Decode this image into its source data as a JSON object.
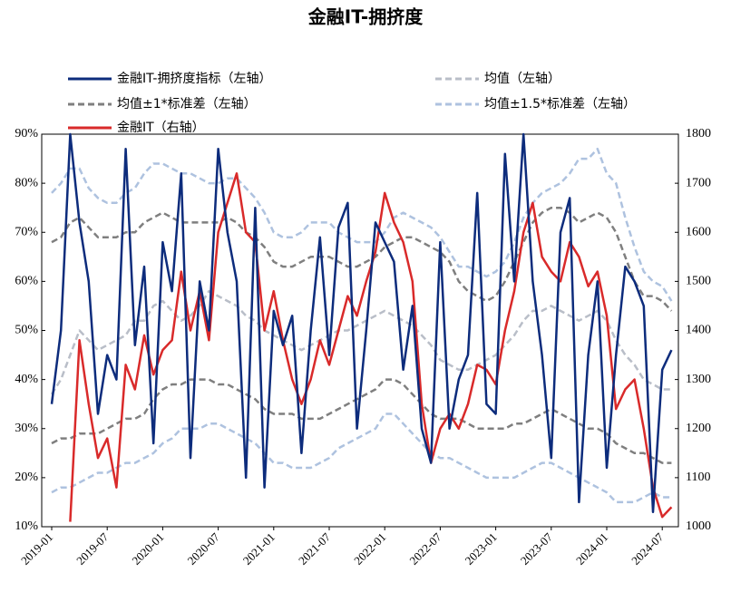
{
  "chart_data": {
    "type": "line",
    "title": "金融IT-拥挤度",
    "categories": [
      "2019-01",
      null,
      null,
      null,
      null,
      null,
      "2019-07",
      null,
      null,
      null,
      null,
      null,
      "2020-01",
      null,
      null,
      null,
      null,
      null,
      "2020-07",
      null,
      null,
      null,
      null,
      null,
      "2021-01",
      null,
      null,
      null,
      null,
      null,
      "2021-07",
      null,
      null,
      null,
      null,
      null,
      "2022-01",
      null,
      null,
      null,
      null,
      null,
      "2022-07",
      null,
      null,
      null,
      null,
      null,
      "2023-01",
      null,
      null,
      null,
      null,
      null,
      "2023-07",
      null,
      null,
      null,
      null,
      null,
      "2024-01",
      null,
      null,
      null,
      null,
      null,
      "2024-07",
      null
    ],
    "ylim": [
      10,
      90
    ],
    "yticks": [
      {
        "value": 10,
        "label": "10%"
      },
      {
        "value": 20,
        "label": "20%"
      },
      {
        "value": 30,
        "label": "30%"
      },
      {
        "value": 40,
        "label": "40%"
      },
      {
        "value": 50,
        "label": "50%"
      },
      {
        "value": 60,
        "label": "60%"
      },
      {
        "value": 70,
        "label": "70%"
      },
      {
        "value": 80,
        "label": "80%"
      },
      {
        "value": 90,
        "label": "90%"
      }
    ],
    "y2lim": [
      1000,
      1800
    ],
    "y2ticks": [
      1000,
      1100,
      1200,
      1300,
      1400,
      1500,
      1600,
      1700,
      1800
    ],
    "series": [
      {
        "name": "金融IT-拥挤度指标（左轴）",
        "color": "#0d2c7c",
        "dashed": false,
        "values": [
          35,
          50,
          90,
          72,
          60,
          33,
          45,
          40,
          87,
          47,
          63,
          27,
          68,
          58,
          82,
          24,
          60,
          50,
          87,
          70,
          60,
          20,
          75,
          18,
          54,
          47,
          53,
          25,
          50,
          69,
          45,
          71,
          76,
          30,
          50,
          72,
          68,
          64,
          42,
          55,
          30,
          23,
          68,
          30,
          40,
          45,
          78,
          35,
          33,
          86,
          60,
          90,
          60,
          45,
          24,
          70,
          77,
          15,
          45,
          60,
          22,
          45,
          63,
          60,
          55,
          13,
          42,
          46
        ]
      },
      {
        "name": "均值（左轴）",
        "color": "#b9bec8",
        "dashed": true,
        "values": [
          37,
          40,
          45,
          50,
          48,
          46,
          47,
          48,
          49,
          52,
          52,
          55,
          56,
          54,
          52,
          53,
          55,
          58,
          57,
          56,
          55,
          53,
          52,
          50,
          49,
          48,
          47,
          46,
          47,
          48,
          49,
          50,
          50,
          51,
          52,
          53,
          54,
          53,
          52,
          51,
          49,
          47,
          44,
          43,
          42,
          42,
          43,
          44,
          45,
          47,
          49,
          52,
          54,
          54,
          55,
          54,
          53,
          52,
          53,
          54,
          52,
          48,
          45,
          43,
          40,
          39,
          38,
          38
        ]
      },
      {
        "name": "均值±1*标准差（左轴）",
        "color": "#7f7f7f",
        "dashed": true,
        "upper": [
          68,
          69,
          72,
          73,
          71,
          69,
          69,
          69,
          70,
          70,
          72,
          73,
          74,
          73,
          72,
          72,
          72,
          72,
          72,
          73,
          72,
          70,
          69,
          67,
          64,
          63,
          63,
          64,
          65,
          65,
          65,
          64,
          63,
          63,
          64,
          65,
          67,
          68,
          69,
          69,
          68,
          67,
          66,
          64,
          60,
          58,
          57,
          56,
          57,
          60,
          64,
          68,
          72,
          74,
          75,
          75,
          74,
          72,
          73,
          74,
          73,
          70,
          65,
          60,
          57,
          57,
          56,
          54
        ],
        "lower": [
          27,
          28,
          28,
          29,
          29,
          29,
          30,
          31,
          32,
          32,
          33,
          36,
          38,
          39,
          39,
          40,
          40,
          40,
          39,
          39,
          38,
          37,
          36,
          34,
          33,
          33,
          33,
          32,
          32,
          32,
          33,
          34,
          35,
          36,
          37,
          38,
          40,
          40,
          39,
          37,
          35,
          33,
          32,
          32,
          32,
          31,
          30,
          30,
          30,
          30,
          31,
          31,
          32,
          33,
          34,
          33,
          32,
          31,
          30,
          30,
          29,
          27,
          26,
          25,
          25,
          24,
          23,
          23
        ]
      },
      {
        "name": "均值±1.5*标准差（左轴）",
        "color": "#aec2df",
        "dashed": true,
        "upper": [
          78,
          80,
          83,
          83,
          79,
          77,
          76,
          76,
          78,
          79,
          82,
          84,
          84,
          83,
          82,
          82,
          81,
          80,
          80,
          81,
          81,
          79,
          77,
          74,
          70,
          69,
          69,
          70,
          72,
          72,
          72,
          70,
          69,
          68,
          68,
          68,
          70,
          73,
          74,
          73,
          72,
          71,
          69,
          66,
          63,
          63,
          62,
          61,
          62,
          64,
          68,
          73,
          76,
          78,
          79,
          80,
          82,
          85,
          85,
          87,
          82,
          80,
          73,
          67,
          62,
          60,
          59,
          56
        ],
        "lower": [
          17,
          18,
          18,
          19,
          20,
          21,
          21,
          22,
          23,
          23,
          24,
          25,
          27,
          28,
          30,
          30,
          30,
          31,
          31,
          30,
          29,
          28,
          27,
          25,
          23,
          23,
          22,
          22,
          22,
          23,
          24,
          26,
          27,
          28,
          29,
          30,
          33,
          33,
          31,
          29,
          27,
          25,
          24,
          24,
          23,
          22,
          21,
          20,
          20,
          20,
          20,
          21,
          22,
          23,
          23,
          22,
          21,
          20,
          19,
          18,
          17,
          15,
          15,
          15,
          16,
          17,
          16,
          16
        ]
      },
      {
        "name": "金融IT（右轴）",
        "color": "#d92a2a",
        "dashed": false,
        "axis": "y2",
        "values": [
          null,
          null,
          1010,
          1380,
          1250,
          1140,
          1180,
          1080,
          1330,
          1280,
          1390,
          1310,
          1360,
          1380,
          1520,
          1400,
          1480,
          1380,
          1600,
          1660,
          1720,
          1600,
          1580,
          1400,
          1480,
          1380,
          1300,
          1250,
          1300,
          1380,
          1330,
          1400,
          1470,
          1430,
          1500,
          1560,
          1680,
          1620,
          1580,
          1500,
          1250,
          1130,
          1200,
          1230,
          1200,
          1250,
          1330,
          1320,
          1290,
          1400,
          1480,
          1600,
          1660,
          1550,
          1520,
          1500,
          1580,
          1550,
          1490,
          1520,
          1430,
          1240,
          1280,
          1300,
          1200,
          1080,
          1020,
          1040
        ]
      }
    ]
  }
}
